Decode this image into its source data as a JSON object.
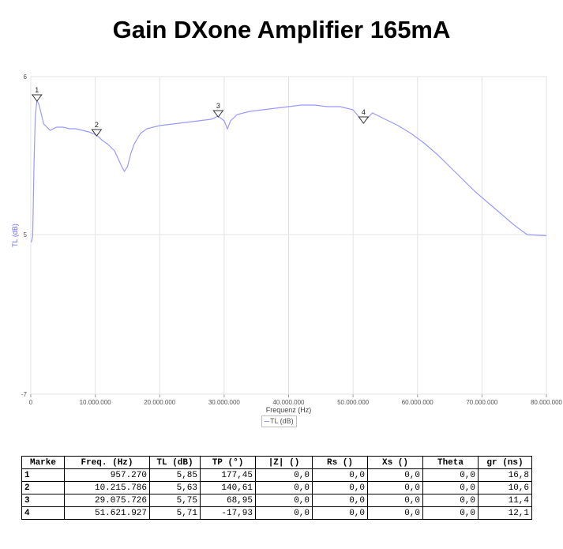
{
  "title": "Gain DXone Amplifier 165mA",
  "chart_data": {
    "type": "line",
    "title": "Gain DXone Amplifier 165mA",
    "xlabel": "Frequenz (Hz)",
    "ylabel": "TL (dB)",
    "xlim": [
      0,
      80000000
    ],
    "ylim": [
      -7,
      6
    ],
    "x_ticks": [
      0,
      10000000,
      20000000,
      30000000,
      40000000,
      50000000,
      60000000,
      70000000,
      80000000
    ],
    "x_tick_labels": [
      "0",
      "10.000.000",
      "20.000.000",
      "30.000.000",
      "40.000.000",
      "50.000.000",
      "60.000.000",
      "70.000.000",
      "80.000.000"
    ],
    "y_ticks": [
      -7,
      5,
      6
    ],
    "y_tick_labels": [
      "-7",
      "5",
      "6"
    ],
    "grid": true,
    "legend": "bottom-center",
    "series": [
      {
        "name": "TL (dB)",
        "color": "#9999ff",
        "x": [
          100000,
          300000,
          500000,
          700000,
          957270,
          1300000,
          2000000,
          3000000,
          4000000,
          5000000,
          6000000,
          7000000,
          8000000,
          9000000,
          10215786,
          11000000,
          12000000,
          13000000,
          14000000,
          14500000,
          15000000,
          15500000,
          16000000,
          17000000,
          18000000,
          19000000,
          20000000,
          22000000,
          24000000,
          26000000,
          28000000,
          29075726,
          30000000,
          30500000,
          31000000,
          32000000,
          34000000,
          36000000,
          38000000,
          40000000,
          42000000,
          44000000,
          46000000,
          48000000,
          50000000,
          51621927,
          53000000,
          55000000,
          57000000,
          59000000,
          61000000,
          63000000,
          65000000,
          67000000,
          69000000,
          71000000,
          73000000,
          75000000,
          77000000,
          79000000,
          80000000
        ],
        "y": [
          4.42,
          4.9,
          5.45,
          5.75,
          5.85,
          5.82,
          5.7,
          5.66,
          5.68,
          5.68,
          5.67,
          5.67,
          5.66,
          5.65,
          5.63,
          5.6,
          5.57,
          5.53,
          5.44,
          5.4,
          5.43,
          5.51,
          5.57,
          5.64,
          5.67,
          5.68,
          5.69,
          5.7,
          5.71,
          5.72,
          5.73,
          5.75,
          5.72,
          5.67,
          5.72,
          5.76,
          5.78,
          5.79,
          5.8,
          5.81,
          5.82,
          5.82,
          5.81,
          5.81,
          5.79,
          5.71,
          5.77,
          5.73,
          5.69,
          5.64,
          5.58,
          5.51,
          5.43,
          5.35,
          5.27,
          5.2,
          5.13,
          5.06,
          5.0,
          4.94,
          4.91
        ]
      }
    ],
    "markers": [
      {
        "id": "1",
        "x": 957270,
        "y": 5.85
      },
      {
        "id": "2",
        "x": 10215786,
        "y": 5.63
      },
      {
        "id": "3",
        "x": 29075726,
        "y": 5.75
      },
      {
        "id": "4",
        "x": 51621927,
        "y": 5.71
      }
    ]
  },
  "legend_label": "TL (dB)",
  "table": {
    "headers": [
      "Marke",
      "Freq. (Hz)",
      "TL (dB)",
      "TP (°)",
      "|Z| ()",
      "Rs ()",
      "Xs ()",
      "Theta",
      "gr (ns)"
    ],
    "rows": [
      [
        "1",
        "957.270",
        "5,85",
        "177,45",
        "0,0",
        "0,0",
        "0,0",
        "0,0",
        "16,8"
      ],
      [
        "2",
        "10.215.786",
        "5,63",
        "140,61",
        "0,0",
        "0,0",
        "0,0",
        "0,0",
        "10,6"
      ],
      [
        "3",
        "29.075.726",
        "5,75",
        "68,95",
        "0,0",
        "0,0",
        "0,0",
        "0,0",
        "11,4"
      ],
      [
        "4",
        "51.621.927",
        "5,71",
        "-17,93",
        "0,0",
        "0,0",
        "0,0",
        "0,0",
        "12,1"
      ]
    ]
  }
}
